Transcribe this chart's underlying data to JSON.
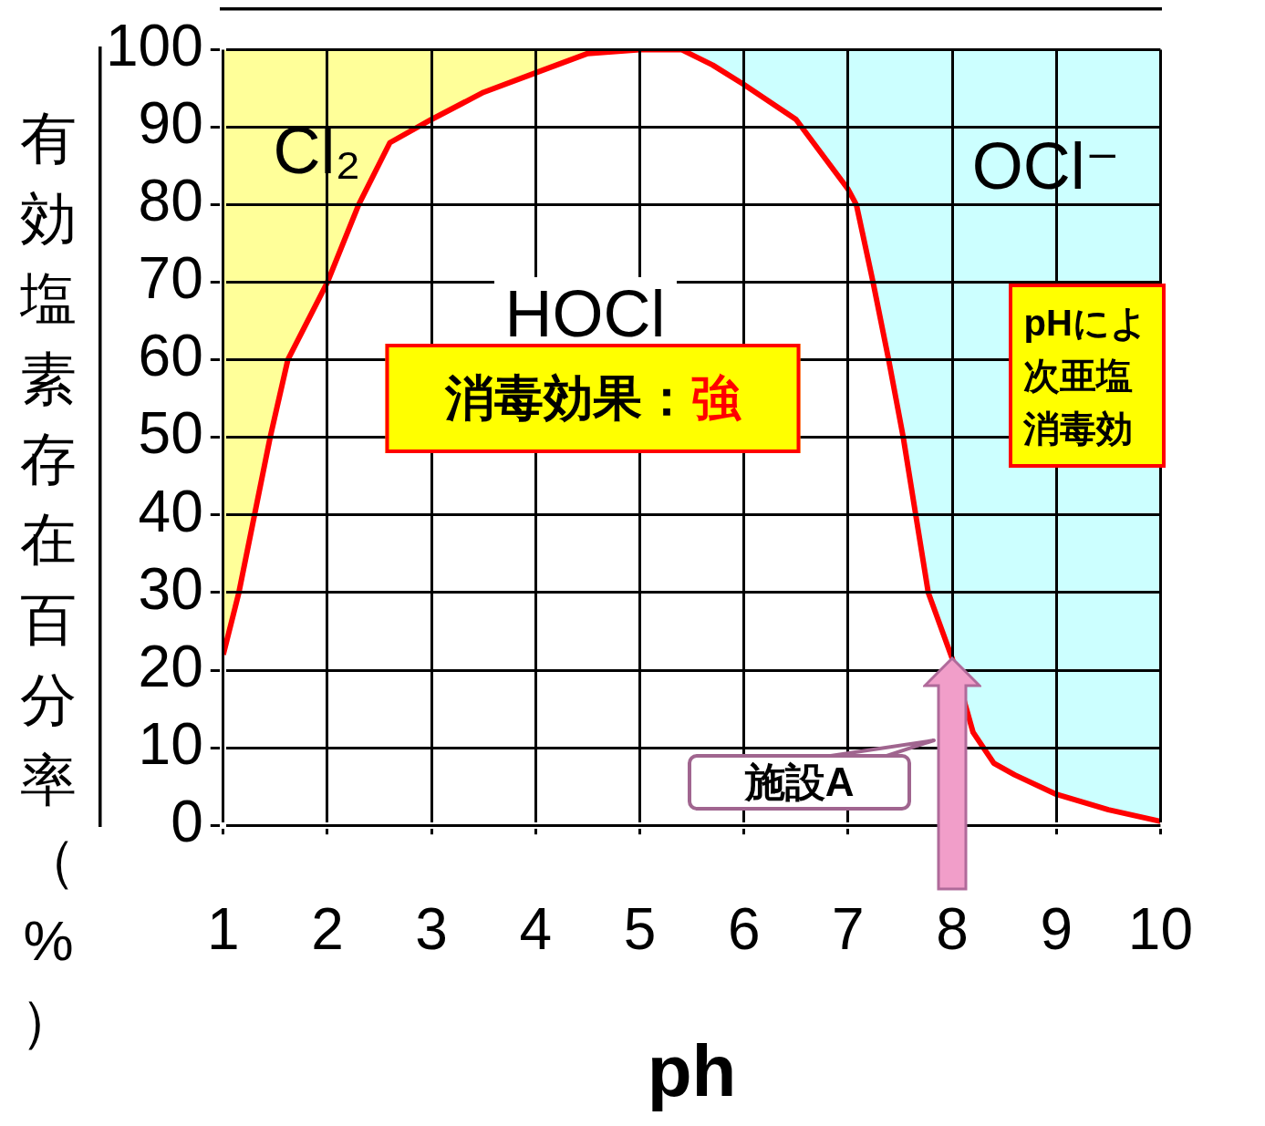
{
  "chart_data": {
    "type": "area",
    "xlabel": "ph",
    "ylabel": "有効塩素存在百分率（%）",
    "x": [
      1,
      1.15,
      1.3,
      1.45,
      1.62,
      2,
      2.3,
      2.6,
      3,
      3.5,
      4,
      4.5,
      5,
      5.4,
      5.7,
      6,
      6.5,
      7,
      7.08,
      7.24,
      7.39,
      7.53,
      7.65,
      7.77,
      8,
      8.2,
      8.4,
      8.6,
      9,
      9.5,
      10
    ],
    "stacked": true,
    "series": [
      {
        "name": "HOCl",
        "color": "#ff0000",
        "values": [
          22,
          30,
          40,
          50,
          60,
          70,
          80,
          88,
          91,
          94.5,
          97,
          99.5,
          100,
          100,
          98,
          95.5,
          91,
          82,
          80,
          70,
          60,
          50,
          40,
          30,
          21.5,
          12,
          8,
          6.5,
          4,
          2,
          0.5
        ]
      },
      {
        "color": "#ffff99",
        "values": [
          78,
          70,
          60,
          50,
          40,
          30,
          20,
          12,
          9,
          5.5,
          3,
          0.5,
          0,
          null,
          null,
          null,
          null,
          null,
          null,
          null,
          null,
          null,
          null,
          null,
          null,
          null,
          null,
          null,
          null,
          null,
          null
        ]
      },
      {
        "color": "#ccffff",
        "values": [
          null,
          null,
          null,
          null,
          null,
          null,
          null,
          null,
          null,
          null,
          null,
          null,
          null,
          0,
          2,
          4.5,
          9,
          18,
          20,
          30,
          40,
          50,
          60,
          70,
          78.5,
          88,
          92,
          93.5,
          96,
          98,
          99.5
        ]
      }
    ],
    "xlim": [
      1,
      10
    ],
    "xticks": [
      1,
      2,
      3,
      4,
      5,
      6,
      7,
      8,
      9,
      10
    ],
    "ylim": [
      0,
      100
    ],
    "yticks": [
      0,
      10,
      20,
      30,
      40,
      50,
      60,
      70,
      80,
      90,
      100
    ],
    "grid": true,
    "legend": false,
    "marker": "none",
    "line_style": "solid",
    "annotations": [
      "Cl₂",
      "OCl⁻",
      "消毒効果：強",
      "pHによ次亜塩消毒効",
      "施設A"
    ]
  }
}
